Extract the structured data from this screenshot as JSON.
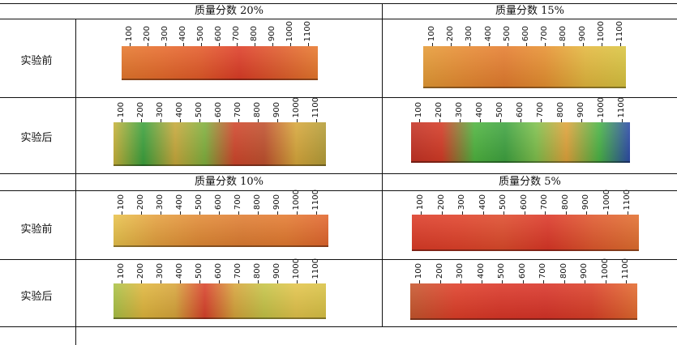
{
  "panels": [
    {
      "header": "质量分数 20%",
      "rows": [
        {
          "label": "实验前",
          "colors": [
            "#e6772b",
            "#e76a2a",
            "#e45a28",
            "#de3c26",
            "#e05a2a",
            "#e8782c"
          ]
        },
        {
          "label": "实验后",
          "colors": [
            "#c9b23a",
            "#3aa13c",
            "#c7a83a",
            "#7fb03c",
            "#d0452a",
            "#c0502d",
            "#d7a73a",
            "#b49d37"
          ]
        }
      ]
    },
    {
      "header": "质量分数 15%",
      "rows": [
        {
          "label": "实验前",
          "colors": [
            "#e59a34",
            "#e78a30",
            "#e57c2d",
            "#e7902f",
            "#e3b73c",
            "#d9c43f"
          ]
        },
        {
          "label": "实验后",
          "colors": [
            "#c43224",
            "#d43a25",
            "#4eb43e",
            "#3ea340",
            "#7ec04b",
            "#e0a33a",
            "#49b445",
            "#2c4aa8"
          ]
        }
      ]
    },
    {
      "header": "质量分数 10%",
      "rows": [
        {
          "label": "实验前",
          "colors": [
            "#e8c24a",
            "#e5a03d",
            "#e28a34",
            "#e07d31",
            "#e47a2f",
            "#e2652c"
          ]
        },
        {
          "label": "实验后",
          "colors": [
            "#a9c245",
            "#e0b63c",
            "#d8a53a",
            "#d9412a",
            "#d7a43a",
            "#c6c446",
            "#e3c44a",
            "#d9c244"
          ]
        }
      ]
    },
    {
      "header": "质量分数 5%",
      "rows": [
        {
          "label": "实验前",
          "colors": [
            "#dc3a26",
            "#e04028",
            "#de4a2a",
            "#dc3626",
            "#e0582c",
            "#e26f2e"
          ]
        },
        {
          "label": "实验后",
          "colors": [
            "#c7562c",
            "#df3d27",
            "#db3526",
            "#d93327",
            "#db3f27",
            "#e36a2d"
          ]
        }
      ]
    }
  ],
  "scale_ticks": [
    "100",
    "200",
    "300",
    "400",
    "500",
    "600",
    "700",
    "800",
    "900",
    "1000",
    "1100"
  ]
}
